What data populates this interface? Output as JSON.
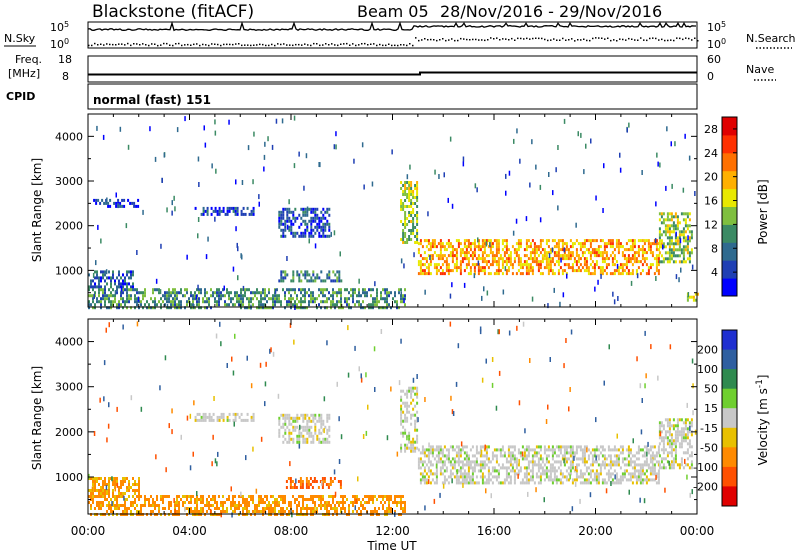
{
  "header": {
    "station": "Blackstone (fitACF)",
    "beam": "Beam 05",
    "date_range": "28/Nov/2016 - 29/Nov/2016"
  },
  "summary": {
    "nsky_label": "N.Sky",
    "nsearch_label": "N.Search",
    "nsky_ticks": [
      "10^5",
      "10^0"
    ],
    "nsearch_ticks": [
      "10^5",
      "10^0"
    ],
    "freq_label_1": "Freq.",
    "freq_label_2": "[MHz]",
    "freq_ticks": [
      "18",
      "8"
    ],
    "nave_label": "Nave",
    "nave_ticks": [
      "60",
      "0"
    ],
    "cpid_label": "CPID",
    "cpid_text": "normal (fast) 151"
  },
  "panels": {
    "power": {
      "ylabel": "Slant Range [km]"
    },
    "velocity": {
      "ylabel": "Slant Range [km]"
    }
  },
  "colors": {
    "power_scale": [
      "#0000ff",
      "#1f3fb4",
      "#2f6a8f",
      "#3b8a64",
      "#7fbf3f",
      "#e8e800",
      "#ffb000",
      "#ff7000",
      "#ff3000",
      "#e00000"
    ],
    "velocity_scale": [
      "#1f2fd0",
      "#2f5fa0",
      "#2f8a4f",
      "#6fcf2f",
      "#c8c8c8",
      "#e8c000",
      "#ff8a00",
      "#ff5000",
      "#e00000"
    ]
  },
  "chart_data": [
    {
      "type": "heatmap",
      "title": "",
      "xlabel": "Time UT",
      "ylabel": "Slant Range [km]",
      "x_ticks": [
        "00:00",
        "04:00",
        "08:00",
        "12:00",
        "16:00",
        "20:00",
        "00:00"
      ],
      "y_ticks": [
        1000,
        2000,
        3000,
        4000
      ],
      "xlim_hours": [
        0,
        24
      ],
      "ylim": [
        180,
        4500
      ],
      "colorbar": {
        "label": "Power [dB]",
        "ticks": [
          4,
          8,
          12,
          16,
          20,
          24,
          28
        ],
        "range": [
          0,
          30
        ]
      },
      "echo_regions": [
        {
          "t_start": 0.0,
          "t_end": 1.8,
          "range_low": 650,
          "range_high": 1000,
          "value": 6
        },
        {
          "t_start": 0.2,
          "t_end": 2.0,
          "range_low": 2450,
          "range_high": 2600,
          "value": 4
        },
        {
          "t_start": 4.2,
          "t_end": 6.5,
          "range_low": 2250,
          "range_high": 2420,
          "value": 5
        },
        {
          "t_start": 7.5,
          "t_end": 9.5,
          "range_low": 1750,
          "range_high": 2400,
          "value": 5
        },
        {
          "t_start": 7.5,
          "t_end": 10.0,
          "range_low": 780,
          "range_high": 1000,
          "value": 9
        },
        {
          "t_start": 0.0,
          "t_end": 12.5,
          "range_low": 180,
          "range_high": 600,
          "value": 10
        },
        {
          "t_start": 12.3,
          "t_end": 13.0,
          "range_low": 1600,
          "range_high": 3000,
          "value": 14
        },
        {
          "t_start": 13.0,
          "t_end": 22.5,
          "range_low": 900,
          "range_high": 1700,
          "value": 20
        },
        {
          "t_start": 22.5,
          "t_end": 23.8,
          "range_low": 1200,
          "range_high": 2300,
          "value": 14
        },
        {
          "t_start": 23.6,
          "t_end": 24.0,
          "range_low": 300,
          "range_high": 500,
          "value": 16
        }
      ]
    },
    {
      "type": "heatmap",
      "title": "",
      "xlabel": "Time UT",
      "ylabel": "Slant Range [km]",
      "x_ticks": [
        "00:00",
        "04:00",
        "08:00",
        "12:00",
        "16:00",
        "20:00",
        "00:00"
      ],
      "y_ticks": [
        1000,
        2000,
        3000,
        4000
      ],
      "xlim_hours": [
        0,
        24
      ],
      "ylim": [
        180,
        4500
      ],
      "colorbar": {
        "label": "Velocity [m s^-1]",
        "ticks": [
          "200",
          "100",
          "50",
          "15",
          "-15",
          "-50",
          "-100",
          "-200"
        ],
        "range": [
          -250,
          250
        ]
      },
      "echo_regions": [
        {
          "t_start": 0.0,
          "t_end": 2.0,
          "range_low": 600,
          "range_high": 1000,
          "value": -40
        },
        {
          "t_start": 4.2,
          "t_end": 6.5,
          "range_low": 2250,
          "range_high": 2420,
          "value": 0
        },
        {
          "t_start": 7.5,
          "t_end": 9.5,
          "range_low": 1750,
          "range_high": 2400,
          "value": 0
        },
        {
          "t_start": 7.8,
          "t_end": 10.0,
          "range_low": 780,
          "range_high": 1000,
          "value": -80
        },
        {
          "t_start": 0.0,
          "t_end": 12.5,
          "range_low": 180,
          "range_high": 600,
          "value": -50
        },
        {
          "t_start": 12.3,
          "t_end": 13.0,
          "range_low": 1600,
          "range_high": 3000,
          "value": 0
        },
        {
          "t_start": 13.0,
          "t_end": 22.5,
          "range_low": 900,
          "range_high": 1700,
          "value": 0
        },
        {
          "t_start": 22.5,
          "t_end": 23.8,
          "range_low": 1200,
          "range_high": 2300,
          "value": 0
        }
      ]
    }
  ]
}
